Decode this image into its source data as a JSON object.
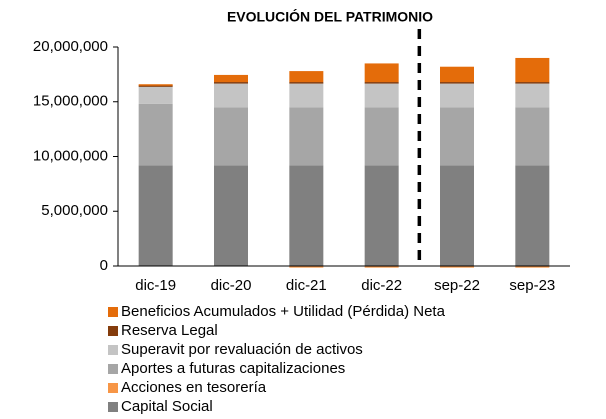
{
  "chart_data": {
    "type": "stacked_bar",
    "title": "EVOLUCIÓN DEL PATRIMONIO",
    "categories": [
      "dic-19",
      "dic-20",
      "dic-21",
      "dic-22",
      "sep-22",
      "sep-23"
    ],
    "series": [
      {
        "name": "Capital Social",
        "color": "#808080",
        "values": [
          9200000,
          9200000,
          9200000,
          9200000,
          9200000,
          9200000
        ]
      },
      {
        "name": "Acciones en tesorería",
        "color": "#f79646",
        "values": [
          0,
          0,
          -150000,
          -150000,
          -150000,
          -150000
        ]
      },
      {
        "name": "Aportes a futuras capitalizaciones",
        "color": "#a6a6a6",
        "values": [
          5600000,
          5300000,
          5300000,
          5300000,
          5300000,
          5300000
        ]
      },
      {
        "name": "Superavit por revaluación de activos",
        "color": "#c4c4c4",
        "values": [
          1600000,
          2200000,
          2200000,
          2200000,
          2200000,
          2200000
        ]
      },
      {
        "name": "Reserva Legal",
        "color": "#843c0c",
        "values": [
          100000,
          100000,
          100000,
          100000,
          100000,
          100000
        ]
      },
      {
        "name": "Beneficios Acumulados + Utilidad (Pérdida) Neta",
        "color": "#e46c0a",
        "values": [
          100000,
          650000,
          1000000,
          1700000,
          1400000,
          2200000
        ]
      }
    ],
    "ylim": [
      0,
      20000000
    ],
    "yticks": [
      0,
      {
        "value": 5000000,
        "label": "5,000,000"
      },
      {
        "value": 10000000,
        "label": "10,000,000"
      },
      {
        "value": 15000000,
        "label": "15,000,000"
      },
      {
        "value": 20000000,
        "label": "20,000,000"
      }
    ]
  }
}
